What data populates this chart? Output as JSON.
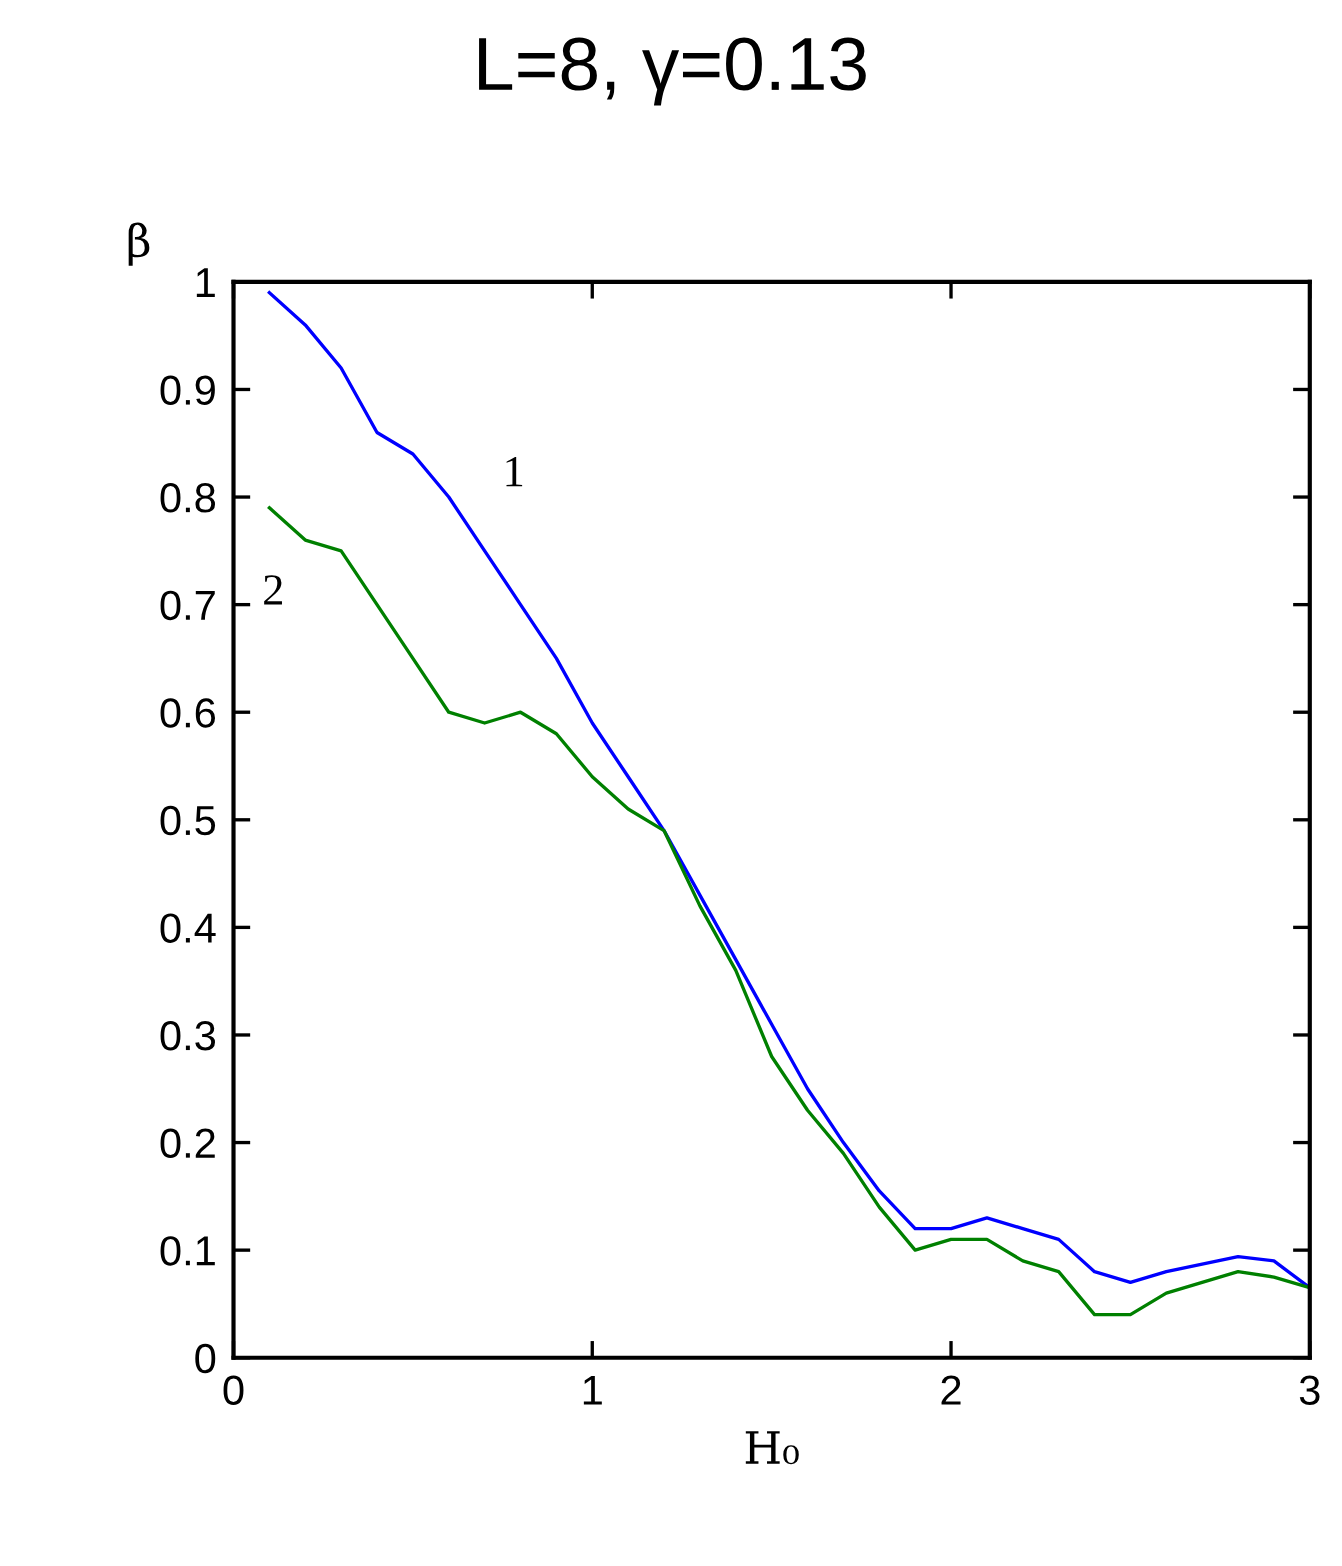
{
  "chart_data": {
    "type": "line",
    "title": "L=8, γ=0.13",
    "xlabel": "H₀",
    "ylabel": "β",
    "x": [
      0.1,
      0.2,
      0.3,
      0.4,
      0.5,
      0.6,
      0.7,
      0.8,
      0.9,
      1.0,
      1.1,
      1.2,
      1.3,
      1.4,
      1.5,
      1.6,
      1.7,
      1.8,
      1.9,
      2.0,
      2.1,
      2.2,
      2.3,
      2.4,
      2.5,
      2.6,
      2.7,
      2.8,
      2.9,
      3.0
    ],
    "series": [
      {
        "name": "1",
        "color": "#0000ff",
        "values": [
          0.99,
          0.96,
          0.92,
          0.86,
          0.84,
          0.8,
          0.75,
          0.7,
          0.65,
          0.59,
          0.54,
          0.49,
          0.43,
          0.37,
          0.31,
          0.25,
          0.2,
          0.155,
          0.12,
          0.12,
          0.13,
          0.12,
          0.11,
          0.08,
          0.07,
          0.08,
          0.087,
          0.094,
          0.09,
          0.065
        ]
      },
      {
        "name": "2",
        "color": "#008000",
        "values": [
          0.79,
          0.76,
          0.75,
          0.7,
          0.65,
          0.6,
          0.59,
          0.6,
          0.58,
          0.54,
          0.51,
          0.49,
          0.42,
          0.36,
          0.28,
          0.23,
          0.19,
          0.14,
          0.1,
          0.11,
          0.11,
          0.09,
          0.08,
          0.04,
          0.04,
          0.06,
          0.07,
          0.08,
          0.075,
          0.065
        ]
      }
    ],
    "xlim": [
      0,
      3
    ],
    "xticks": [
      0,
      1,
      2,
      3
    ],
    "ylim": [
      0,
      1
    ],
    "yticks": [
      0,
      0.1,
      0.2,
      0.3,
      0.4,
      0.5,
      0.6,
      0.7,
      0.8,
      0.9,
      1
    ],
    "grid": false,
    "legend": false,
    "marker": "none",
    "line_style": "solid"
  }
}
